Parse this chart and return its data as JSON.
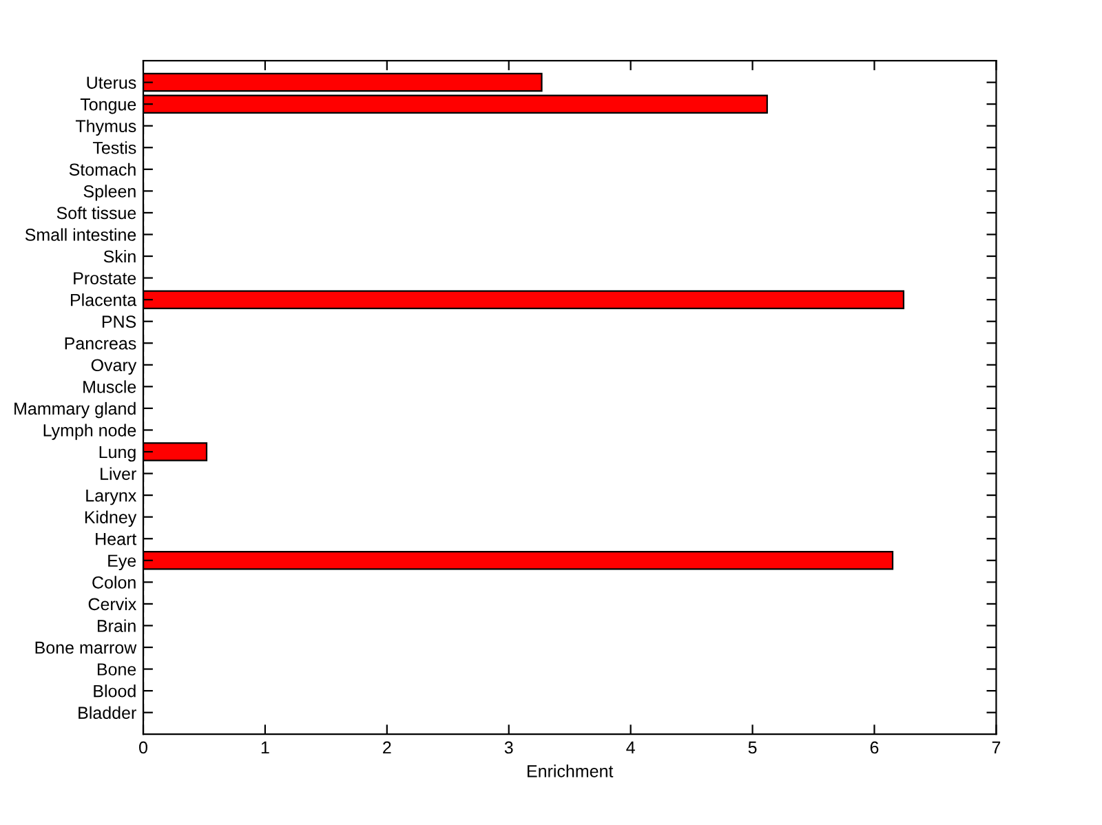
{
  "chart_data": {
    "type": "bar",
    "orientation": "horizontal",
    "xlabel": "Enrichment",
    "categories": [
      "Uterus",
      "Tongue",
      "Thymus",
      "Testis",
      "Stomach",
      "Spleen",
      "Soft tissue",
      "Small intestine",
      "Skin",
      "Prostate",
      "Placenta",
      "PNS",
      "Pancreas",
      "Ovary",
      "Muscle",
      "Mammary gland",
      "Lymph node",
      "Lung",
      "Liver",
      "Larynx",
      "Kidney",
      "Heart",
      "Eye",
      "Colon",
      "Cervix",
      "Brain",
      "Bone marrow",
      "Bone",
      "Blood",
      "Bladder"
    ],
    "values": [
      3.27,
      5.12,
      0,
      0,
      0,
      0,
      0,
      0,
      0,
      0,
      6.24,
      0,
      0,
      0,
      0,
      0,
      0,
      0.52,
      0,
      0,
      0,
      0,
      6.15,
      0,
      0,
      0,
      0,
      0,
      0,
      0
    ],
    "color": "#ff0000",
    "xlim": [
      0,
      7
    ],
    "xticks": [
      0,
      1,
      2,
      3,
      4,
      5,
      6,
      7
    ],
    "grid": false,
    "legend": false
  }
}
